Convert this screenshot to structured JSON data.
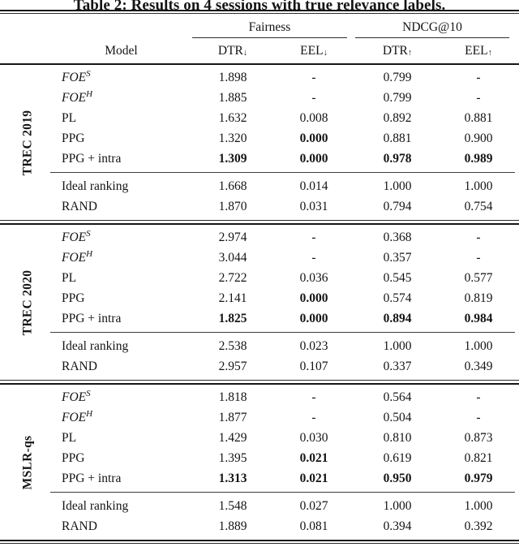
{
  "title": "Table 2: Results on 4 sessions with true relevance labels.",
  "header": {
    "group1": "Fairness",
    "group2": "NDCG@10",
    "model_col": "Model",
    "cols": [
      {
        "label": "DTR",
        "arrow": "↓"
      },
      {
        "label": "EEL",
        "arrow": "↓"
      },
      {
        "label": "DTR",
        "arrow": "↑"
      },
      {
        "label": "EEL",
        "arrow": "↑"
      }
    ]
  },
  "blocks": [
    {
      "dataset": "TREC 2019",
      "rows": [
        {
          "model": "FOE",
          "sup": "S",
          "v": [
            "1.898",
            "-",
            "0.799",
            "-"
          ]
        },
        {
          "model": "FOE",
          "sup": "H",
          "v": [
            "1.885",
            "-",
            "0.799",
            "-"
          ]
        },
        {
          "model": "PL",
          "v": [
            "1.632",
            "0.008",
            "0.892",
            "0.881"
          ]
        },
        {
          "model": "PPG",
          "v": [
            "1.320",
            "0.000",
            "0.881",
            "0.900"
          ]
        },
        {
          "model": "PPG + intra",
          "v": [
            "1.309",
            "0.000",
            "0.978",
            "0.989"
          ]
        }
      ],
      "base": [
        {
          "model": "Ideal ranking",
          "v": [
            "1.668",
            "0.014",
            "1.000",
            "1.000"
          ]
        },
        {
          "model": "RAND",
          "v": [
            "1.870",
            "0.031",
            "0.794",
            "0.754"
          ]
        }
      ]
    },
    {
      "dataset": "TREC 2020",
      "rows": [
        {
          "model": "FOE",
          "sup": "S",
          "v": [
            "2.974",
            "-",
            "0.368",
            "-"
          ]
        },
        {
          "model": "FOE",
          "sup": "H",
          "v": [
            "3.044",
            "-",
            "0.357",
            "-"
          ]
        },
        {
          "model": "PL",
          "v": [
            "2.722",
            "0.036",
            "0.545",
            "0.577"
          ]
        },
        {
          "model": "PPG",
          "v": [
            "2.141",
            "0.000",
            "0.574",
            "0.819"
          ]
        },
        {
          "model": "PPG + intra",
          "v": [
            "1.825",
            "0.000",
            "0.894",
            "0.984"
          ]
        }
      ],
      "base": [
        {
          "model": "Ideal ranking",
          "v": [
            "2.538",
            "0.023",
            "1.000",
            "1.000"
          ]
        },
        {
          "model": "RAND",
          "v": [
            "2.957",
            "0.107",
            "0.337",
            "0.349"
          ]
        }
      ]
    },
    {
      "dataset": "MSLR-qs",
      "rows": [
        {
          "model": "FOE",
          "sup": "S",
          "v": [
            "1.818",
            "-",
            "0.564",
            "-"
          ]
        },
        {
          "model": "FOE",
          "sup": "H",
          "v": [
            "1.877",
            "-",
            "0.504",
            "-"
          ]
        },
        {
          "model": "PL",
          "v": [
            "1.429",
            "0.030",
            "0.810",
            "0.873"
          ]
        },
        {
          "model": "PPG",
          "v": [
            "1.395",
            "0.021",
            "0.619",
            "0.821"
          ]
        },
        {
          "model": "PPG + intra",
          "v": [
            "1.313",
            "0.021",
            "0.950",
            "0.979"
          ]
        }
      ],
      "base": [
        {
          "model": "Ideal ranking",
          "v": [
            "1.548",
            "0.027",
            "1.000",
            "1.000"
          ]
        },
        {
          "model": "RAND",
          "v": [
            "1.889",
            "0.081",
            "0.394",
            "0.392"
          ]
        }
      ]
    }
  ]
}
